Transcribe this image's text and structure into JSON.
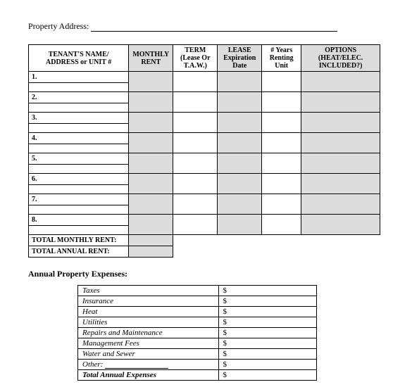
{
  "header": {
    "address_label": "Property Address:"
  },
  "main_table": {
    "headers": {
      "tenant": "TENANT'S NAME/ ADDRESS or UNIT #",
      "rent": "MONTHLY RENT",
      "term": "TERM (Lease Or T.A.W.)",
      "lease": "LEASE Expiration Date",
      "years": "# Years Renting Unit",
      "options": "OPTIONS (HEAT/ELEC. INCLUDED?)"
    },
    "row_numbers": [
      "1.",
      "2.",
      "3.",
      "4.",
      "5.",
      "6.",
      "7.",
      "8."
    ],
    "totals": {
      "monthly": "TOTAL MONTHLY RENT:",
      "annual": "TOTAL ANNUAL RENT:"
    }
  },
  "expenses": {
    "title": "Annual Property Expenses:",
    "currency": "$",
    "rows": [
      "Taxes",
      "Insurance",
      "Heat",
      "Utilities",
      "Repairs and Maintenance",
      "Management Fees",
      "Water and Sewer"
    ],
    "other_label": "Other:",
    "total_label": "Total Annual Expenses"
  },
  "style": {
    "shade_color": "#dcdcdc",
    "border_color": "#000000",
    "bg_color": "#ffffff",
    "font": "Times New Roman"
  }
}
